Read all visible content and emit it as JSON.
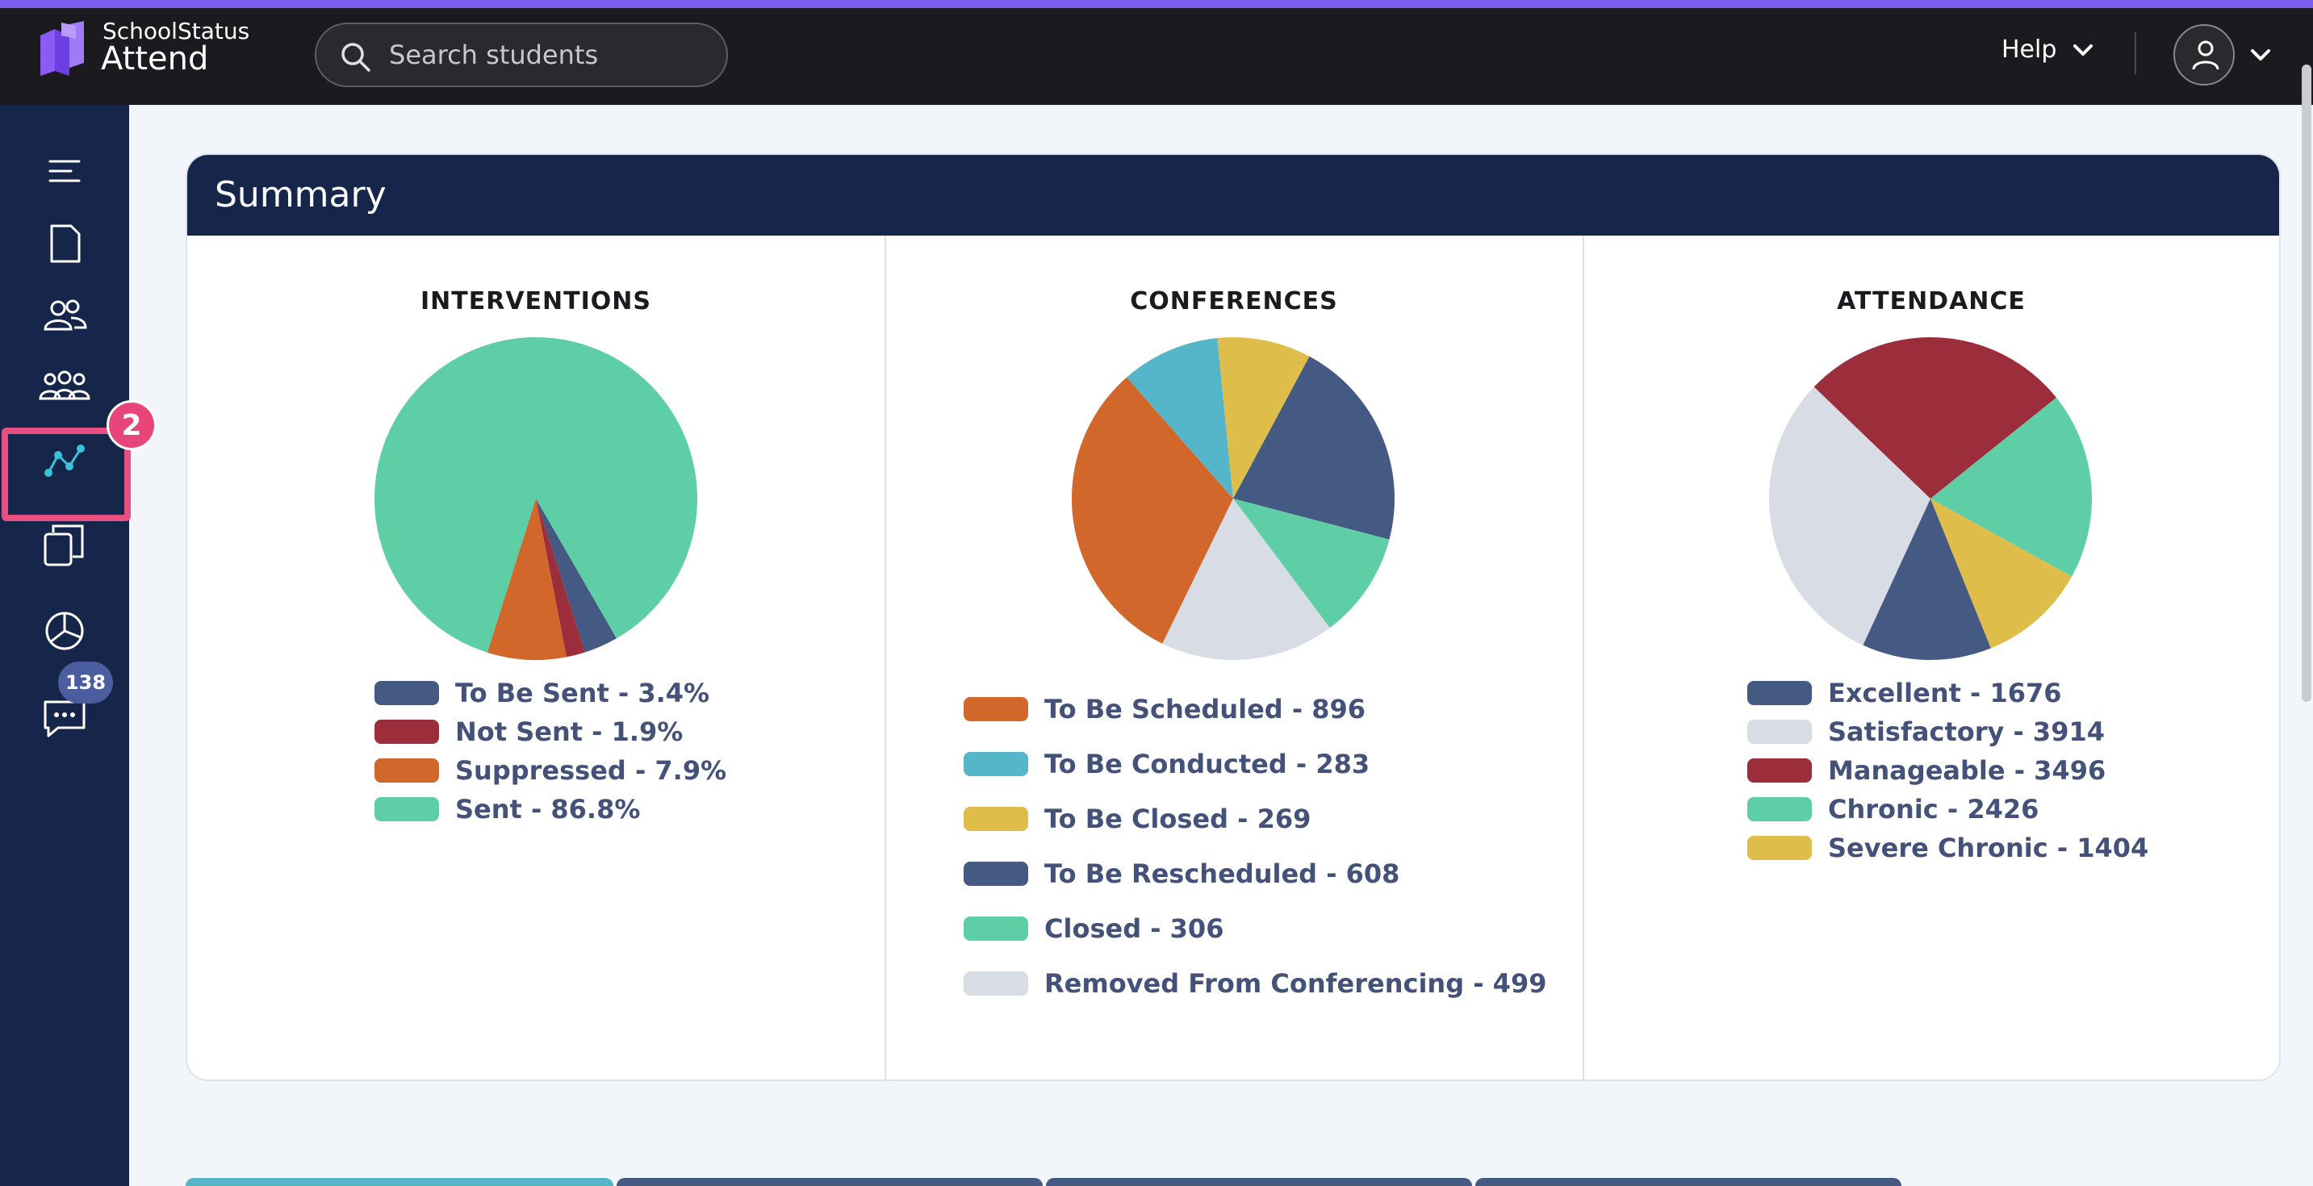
{
  "header": {
    "brand_top": "SchoolStatus",
    "brand_bottom": "Attend",
    "search_placeholder": "Search students",
    "help_label": "Help"
  },
  "sidebar": {
    "items": [
      "menu-icon",
      "document-icon",
      "users-icon",
      "groups-icon",
      "trends-icon",
      "copies-icon",
      "chart-icon",
      "messages-icon"
    ],
    "highlight_badge": "2",
    "messages_badge": "138"
  },
  "summary": {
    "title": "Summary",
    "interventions": {
      "title": "INTERVENTIONS",
      "legend": [
        {
          "label": "To Be Sent - 3.4%",
          "color": "#455a82"
        },
        {
          "label": "Not Sent - 1.9%",
          "color": "#9c2e3b"
        },
        {
          "label": "Suppressed - 7.9%",
          "color": "#d2672b"
        },
        {
          "label": "Sent - 86.8%",
          "color": "#5ecea6"
        }
      ]
    },
    "conferences": {
      "title": "CONFERENCES",
      "legend": [
        {
          "label": "To Be Scheduled - 896",
          "color": "#d2672b"
        },
        {
          "label": "To Be Conducted - 283",
          "color": "#56b6c9"
        },
        {
          "label": "To Be Closed - 269",
          "color": "#dfbd4a"
        },
        {
          "label": "To Be Rescheduled - 608",
          "color": "#455a82"
        },
        {
          "label": "Closed - 306",
          "color": "#5ecea6"
        },
        {
          "label": "Removed From Conferencing - 499",
          "color": "#d8dce5"
        }
      ]
    },
    "attendance": {
      "title": "ATTENDANCE",
      "legend": [
        {
          "label": "Excellent - 1676",
          "color": "#455a82"
        },
        {
          "label": "Satisfactory - 3914",
          "color": "#d8dce5"
        },
        {
          "label": "Manageable - 3496",
          "color": "#9c2e3b"
        },
        {
          "label": "Chronic - 2426",
          "color": "#5ecea6"
        },
        {
          "label": "Severe Chronic - 1404",
          "color": "#dfbd4a"
        }
      ]
    }
  },
  "chart_data": [
    {
      "type": "pie",
      "title": "INTERVENTIONS",
      "categories": [
        "To Be Sent",
        "Not Sent",
        "Suppressed",
        "Sent"
      ],
      "values": [
        3.4,
        1.9,
        7.9,
        86.8
      ],
      "colors": [
        "#455a82",
        "#9c2e3b",
        "#d2672b",
        "#5ecea6"
      ]
    },
    {
      "type": "pie",
      "title": "CONFERENCES",
      "categories": [
        "To Be Scheduled",
        "To Be Conducted",
        "To Be Closed",
        "To Be Rescheduled",
        "Closed",
        "Removed From Conferencing"
      ],
      "values": [
        896,
        283,
        269,
        608,
        306,
        499
      ],
      "colors": [
        "#d2672b",
        "#56b6c9",
        "#dfbd4a",
        "#455a82",
        "#5ecea6",
        "#d8dce5"
      ]
    },
    {
      "type": "pie",
      "title": "ATTENDANCE",
      "categories": [
        "Excellent",
        "Satisfactory",
        "Manageable",
        "Chronic",
        "Severe Chronic"
      ],
      "values": [
        1676,
        3914,
        3496,
        2426,
        1404
      ],
      "colors": [
        "#455a82",
        "#d8dce5",
        "#9c2e3b",
        "#5ecea6",
        "#dfbd4a"
      ]
    }
  ],
  "bottom_tabs": [
    {
      "color": "#56b6c9"
    },
    {
      "color": "#455a82"
    },
    {
      "color": "#455a82"
    },
    {
      "color": "#455a82"
    }
  ]
}
